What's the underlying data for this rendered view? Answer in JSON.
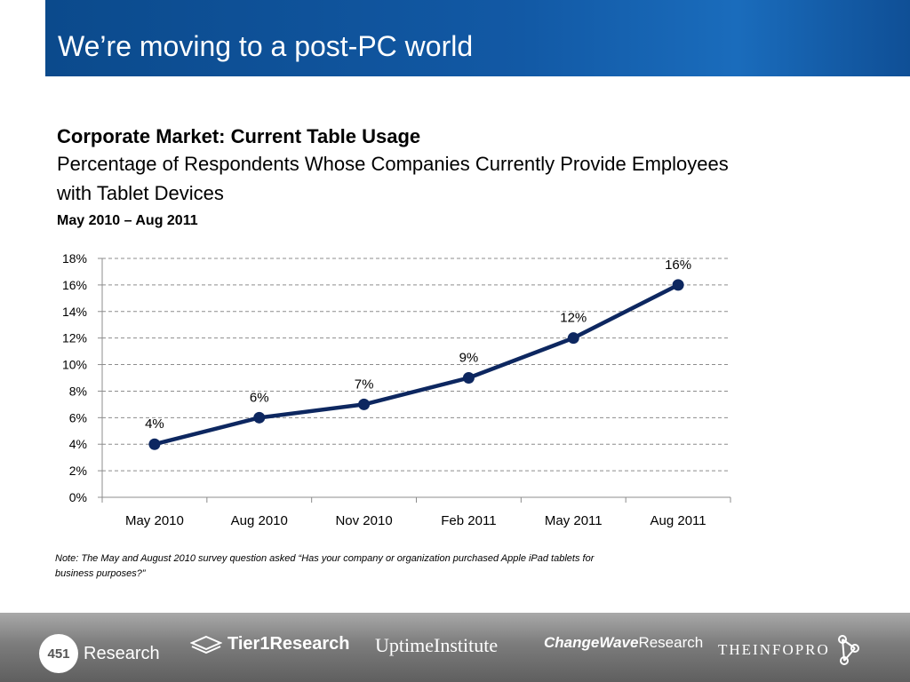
{
  "slide": {
    "title": "We’re moving to a post-PC world",
    "heading": "Corporate Market: Current Table Usage",
    "subheading": "Percentage of Respondents Whose Companies Currently Provide Employees with Tablet Devices",
    "date_range": "May 2010 – Aug 2011",
    "note": "Note: The May and August 2010 survey question asked “Has your company or organization purchased Apple iPad tablets for business purposes?”"
  },
  "chart_data": {
    "type": "line",
    "categories": [
      "May 2010",
      "Aug 2010",
      "Nov 2010",
      "Feb 2011",
      "May 2011",
      "Aug 2011"
    ],
    "values": [
      4,
      6,
      7,
      9,
      12,
      16
    ],
    "data_labels": [
      "4%",
      "6%",
      "7%",
      "9%",
      "12%",
      "16%"
    ],
    "ylim": [
      0,
      18
    ],
    "yticks": [
      0,
      2,
      4,
      6,
      8,
      10,
      12,
      14,
      16,
      18
    ],
    "ytick_labels": [
      "0%",
      "2%",
      "4%",
      "6%",
      "8%",
      "10%",
      "12%",
      "14%",
      "16%",
      "18%"
    ],
    "grid": true,
    "legend": "none",
    "line_color": "#0d2760"
  },
  "footer": {
    "logos": {
      "badge": "451",
      "research": "Research",
      "tier1": "Tier1Research",
      "uptime": "UptimeInstitute",
      "changewave_em": "ChangeWave",
      "changewave_rest": "Research",
      "theinfopro": "THEINFOPRO"
    }
  }
}
